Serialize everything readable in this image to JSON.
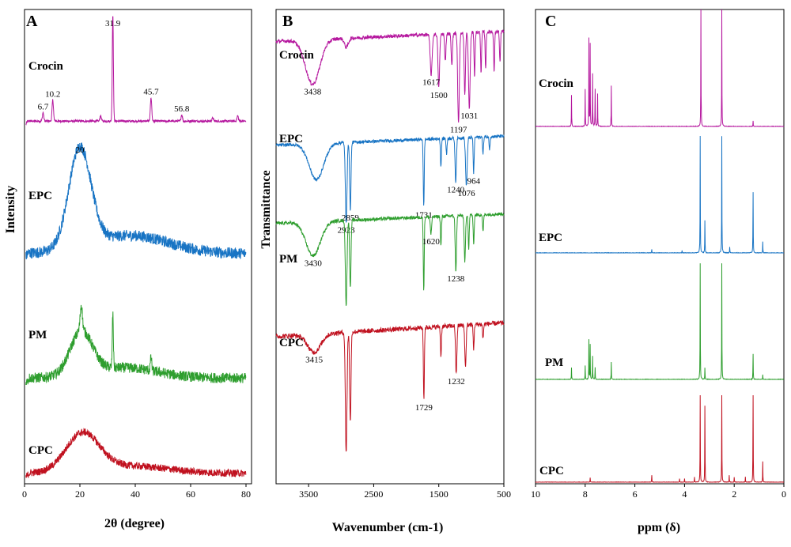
{
  "chart_data": [
    {
      "panel": "A",
      "type": "line",
      "xlabel": "2θ (degree)",
      "ylabel": "Intensity",
      "xlim": [
        0,
        82
      ],
      "x_ticks": [
        0,
        20,
        40,
        60,
        80
      ],
      "y_ticks": [],
      "grid": false,
      "series": [
        {
          "name": "Crocin",
          "color": "#b5179e",
          "baseline": 0.05,
          "noise": 0.01,
          "peaks": [
            {
              "x": 6.7,
              "height": 0.08,
              "width": 0.25
            },
            {
              "x": 10.2,
              "height": 0.2,
              "width": 0.25
            },
            {
              "x": 27.5,
              "height": 0.05,
              "width": 0.25
            },
            {
              "x": 31.9,
              "height": 1.0,
              "width": 0.2
            },
            {
              "x": 45.7,
              "height": 0.22,
              "width": 0.25
            },
            {
              "x": 56.8,
              "height": 0.06,
              "width": 0.25
            },
            {
              "x": 68,
              "height": 0.03,
              "width": 0.25
            },
            {
              "x": 77,
              "height": 0.05,
              "width": 0.25
            }
          ],
          "peak_labels": [
            {
              "x": 6.7,
              "label": "6.7"
            },
            {
              "x": 10.2,
              "label": "10.2"
            },
            {
              "x": 31.9,
              "label": "31.9"
            },
            {
              "x": 45.7,
              "label": "45.7"
            },
            {
              "x": 56.8,
              "label": "56.8"
            }
          ]
        },
        {
          "name": "EPC",
          "color": "#1874c4",
          "baseline": 0.05,
          "noise": 0.05,
          "halos": [
            {
              "x": 20,
              "height": 0.88,
              "width": 4
            },
            {
              "x": 38,
              "height": 0.16,
              "width": 14
            }
          ],
          "peak_labels": [
            {
              "x": 20,
              "label": "20"
            }
          ]
        },
        {
          "name": "PM",
          "color": "#2e9e2e",
          "baseline": 0.08,
          "noise": 0.06,
          "halos": [
            {
              "x": 20.5,
              "height": 0.5,
              "width": 4
            },
            {
              "x": 36,
              "height": 0.12,
              "width": 12
            }
          ],
          "peaks": [
            {
              "x": 20.5,
              "height": 0.3,
              "width": 0.4
            },
            {
              "x": 31.9,
              "height": 0.62,
              "width": 0.2
            },
            {
              "x": 45.7,
              "height": 0.15,
              "width": 0.25
            }
          ]
        },
        {
          "name": "CPC",
          "color": "#c0111f",
          "baseline": 0.08,
          "noise": 0.06,
          "halos": [
            {
              "x": 21,
              "height": 0.62,
              "width": 6
            },
            {
              "x": 38,
              "height": 0.12,
              "width": 14
            }
          ]
        }
      ]
    },
    {
      "panel": "B",
      "type": "line",
      "xlabel": "Wavenumber (cm-1)",
      "ylabel": "Transmittance",
      "xlim": [
        4000,
        500
      ],
      "x_ticks": [
        3500,
        2500,
        1500,
        500
      ],
      "y_ticks": [],
      "grid": false,
      "series": [
        {
          "name": "Crocin",
          "color": "#b5179e",
          "bands": [
            {
              "x": 3438,
              "depth": 0.5,
              "width": 220
            },
            {
              "x": 2920,
              "depth": 0.1,
              "width": 60
            },
            {
              "x": 1617,
              "depth": 0.45,
              "width": 30
            },
            {
              "x": 1500,
              "depth": 0.6,
              "width": 25
            },
            {
              "x": 1400,
              "depth": 0.3,
              "width": 20
            },
            {
              "x": 1300,
              "depth": 0.35,
              "width": 20
            },
            {
              "x": 1197,
              "depth": 1.0,
              "width": 25
            },
            {
              "x": 1100,
              "depth": 0.7,
              "width": 20
            },
            {
              "x": 1031,
              "depth": 0.85,
              "width": 25
            },
            {
              "x": 950,
              "depth": 0.5,
              "width": 15
            },
            {
              "x": 850,
              "depth": 0.45,
              "width": 15
            },
            {
              "x": 780,
              "depth": 0.4,
              "width": 15
            },
            {
              "x": 650,
              "depth": 0.45,
              "width": 15
            },
            {
              "x": 560,
              "depth": 0.35,
              "width": 15
            }
          ],
          "peak_labels": [
            {
              "x": 3438,
              "label": "3438"
            },
            {
              "x": 1617,
              "label": "1617"
            },
            {
              "x": 1500,
              "label": "1500"
            },
            {
              "x": 1197,
              "label": "1197"
            },
            {
              "x": 1031,
              "label": "1031"
            }
          ]
        },
        {
          "name": "EPC",
          "color": "#1874c4",
          "bands": [
            {
              "x": 3380,
              "depth": 0.45,
              "width": 220
            },
            {
              "x": 2923,
              "depth": 1.0,
              "width": 25
            },
            {
              "x": 2859,
              "depth": 0.85,
              "width": 20
            },
            {
              "x": 1731,
              "depth": 0.85,
              "width": 15
            },
            {
              "x": 1467,
              "depth": 0.35,
              "width": 15
            },
            {
              "x": 1380,
              "depth": 0.2,
              "width": 15
            },
            {
              "x": 1240,
              "depth": 0.55,
              "width": 20
            },
            {
              "x": 1076,
              "depth": 0.6,
              "width": 25
            },
            {
              "x": 964,
              "depth": 0.45,
              "width": 15
            },
            {
              "x": 820,
              "depth": 0.2,
              "width": 15
            },
            {
              "x": 720,
              "depth": 0.15,
              "width": 15
            }
          ],
          "peak_labels": [
            {
              "x": 2923,
              "label": "2923"
            },
            {
              "x": 2859,
              "label": "2859"
            },
            {
              "x": 1731,
              "label": "1731"
            },
            {
              "x": 1240,
              "label": "1240"
            },
            {
              "x": 1076,
              "label": "1076"
            },
            {
              "x": 964,
              "label": "964"
            }
          ]
        },
        {
          "name": "PM",
          "color": "#2e9e2e",
          "bands": [
            {
              "x": 3430,
              "depth": 0.4,
              "width": 220
            },
            {
              "x": 2923,
              "depth": 1.0,
              "width": 25
            },
            {
              "x": 2859,
              "depth": 0.8,
              "width": 20
            },
            {
              "x": 1731,
              "depth": 0.85,
              "width": 15
            },
            {
              "x": 1620,
              "depth": 0.2,
              "width": 20
            },
            {
              "x": 1467,
              "depth": 0.35,
              "width": 15
            },
            {
              "x": 1238,
              "depth": 0.65,
              "width": 20
            },
            {
              "x": 1100,
              "depth": 0.55,
              "width": 20
            },
            {
              "x": 1040,
              "depth": 0.4,
              "width": 15
            },
            {
              "x": 964,
              "depth": 0.35,
              "width": 15
            },
            {
              "x": 820,
              "depth": 0.2,
              "width": 15
            }
          ],
          "peak_labels": [
            {
              "x": 3430,
              "label": "3430"
            },
            {
              "x": 1620,
              "label": "1620"
            },
            {
              "x": 1238,
              "label": "1238"
            }
          ]
        },
        {
          "name": "CPC",
          "color": "#c0111f",
          "bands": [
            {
              "x": 3415,
              "depth": 0.15,
              "width": 200
            },
            {
              "x": 2923,
              "depth": 1.0,
              "width": 25
            },
            {
              "x": 2859,
              "depth": 0.75,
              "width": 20
            },
            {
              "x": 1729,
              "depth": 0.6,
              "width": 15
            },
            {
              "x": 1467,
              "depth": 0.25,
              "width": 15
            },
            {
              "x": 1232,
              "depth": 0.4,
              "width": 20
            },
            {
              "x": 1090,
              "depth": 0.35,
              "width": 20
            },
            {
              "x": 964,
              "depth": 0.2,
              "width": 15
            },
            {
              "x": 820,
              "depth": 0.12,
              "width": 15
            }
          ],
          "peak_labels": [
            {
              "x": 3415,
              "label": "3415"
            },
            {
              "x": 1729,
              "label": "1729"
            },
            {
              "x": 1232,
              "label": "1232"
            }
          ]
        }
      ]
    },
    {
      "panel": "C",
      "type": "line",
      "xlabel": "ppm (δ)",
      "ylabel": "",
      "xlim": [
        10,
        0
      ],
      "x_ticks": [
        10,
        8,
        6,
        4,
        2,
        0
      ],
      "y_ticks": [],
      "grid": false,
      "series": [
        {
          "name": "Crocin",
          "color": "#b5179e",
          "peaks": [
            {
              "x": 8.55,
              "height": 0.27
            },
            {
              "x": 8.0,
              "height": 0.32
            },
            {
              "x": 7.85,
              "height": 0.75
            },
            {
              "x": 7.8,
              "height": 0.7
            },
            {
              "x": 7.7,
              "height": 0.45
            },
            {
              "x": 7.6,
              "height": 0.32
            },
            {
              "x": 7.5,
              "height": 0.28
            },
            {
              "x": 6.95,
              "height": 0.35
            },
            {
              "x": 3.34,
              "height": 1.0
            },
            {
              "x": 2.5,
              "height": 1.0
            },
            {
              "x": 1.24,
              "height": 0.05
            }
          ]
        },
        {
          "name": "EPC",
          "color": "#1874c4",
          "peaks": [
            {
              "x": 5.32,
              "height": 0.03
            },
            {
              "x": 4.1,
              "height": 0.02
            },
            {
              "x": 3.37,
              "height": 1.0
            },
            {
              "x": 3.18,
              "height": 0.28
            },
            {
              "x": 2.5,
              "height": 1.0
            },
            {
              "x": 2.18,
              "height": 0.05
            },
            {
              "x": 1.24,
              "height": 0.52
            },
            {
              "x": 0.85,
              "height": 0.1
            }
          ]
        },
        {
          "name": "PM",
          "color": "#2e9e2e",
          "peaks": [
            {
              "x": 8.55,
              "height": 0.1
            },
            {
              "x": 8.0,
              "height": 0.12
            },
            {
              "x": 7.85,
              "height": 0.34
            },
            {
              "x": 7.8,
              "height": 0.3
            },
            {
              "x": 7.7,
              "height": 0.2
            },
            {
              "x": 7.6,
              "height": 0.1
            },
            {
              "x": 6.95,
              "height": 0.15
            },
            {
              "x": 3.37,
              "height": 1.0
            },
            {
              "x": 3.18,
              "height": 0.1
            },
            {
              "x": 2.5,
              "height": 1.0
            },
            {
              "x": 1.24,
              "height": 0.22
            },
            {
              "x": 0.85,
              "height": 0.04
            }
          ]
        },
        {
          "name": "CPC",
          "color": "#c0111f",
          "peaks": [
            {
              "x": 7.8,
              "height": 0.05
            },
            {
              "x": 5.32,
              "height": 0.08
            },
            {
              "x": 4.2,
              "height": 0.04
            },
            {
              "x": 4.0,
              "height": 0.04
            },
            {
              "x": 3.6,
              "height": 0.06
            },
            {
              "x": 3.37,
              "height": 1.0
            },
            {
              "x": 3.18,
              "height": 0.88
            },
            {
              "x": 2.5,
              "height": 1.0
            },
            {
              "x": 2.2,
              "height": 0.08
            },
            {
              "x": 2.0,
              "height": 0.06
            },
            {
              "x": 1.55,
              "height": 0.06
            },
            {
              "x": 1.24,
              "height": 1.0
            },
            {
              "x": 0.85,
              "height": 0.24
            }
          ]
        }
      ]
    }
  ]
}
